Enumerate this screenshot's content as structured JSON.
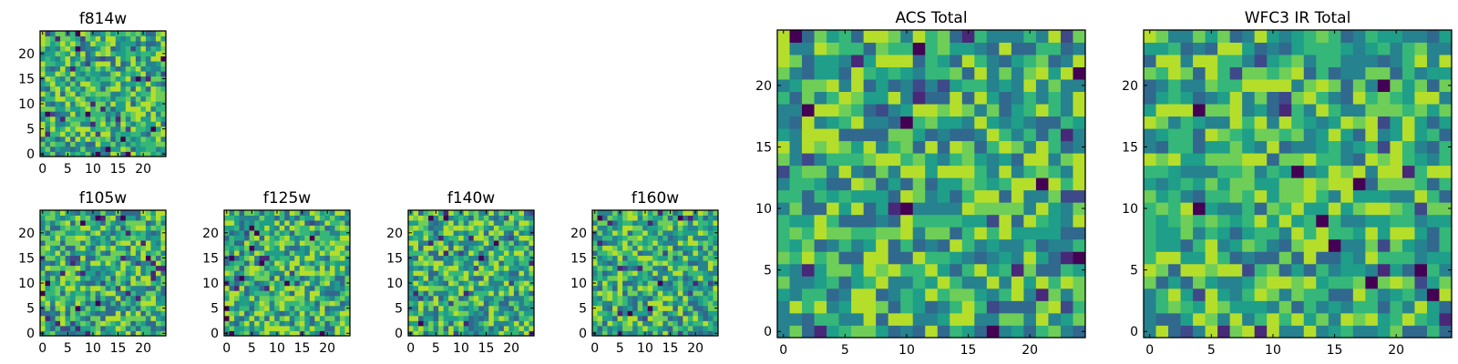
{
  "colors": {
    "background": "#ffffff",
    "axis": "#000000",
    "colormap": "viridis"
  },
  "chart_data": [
    {
      "type": "heatmap",
      "title": "f814w",
      "xlim": [
        0,
        24
      ],
      "ylim": [
        0,
        24
      ],
      "xticks": [
        "0",
        "5",
        "10",
        "15",
        "20"
      ],
      "yticks": [
        "0",
        "5",
        "10",
        "15",
        "20"
      ],
      "grid": false,
      "seed": 11
    },
    {
      "type": "heatmap",
      "title": "f105w",
      "xlim": [
        0,
        24
      ],
      "ylim": [
        0,
        24
      ],
      "xticks": [
        "0",
        "5",
        "10",
        "15",
        "20"
      ],
      "yticks": [
        "0",
        "5",
        "10",
        "15",
        "20"
      ],
      "grid": false,
      "seed": 23
    },
    {
      "type": "heatmap",
      "title": "f125w",
      "xlim": [
        0,
        24
      ],
      "ylim": [
        0,
        24
      ],
      "xticks": [
        "0",
        "5",
        "10",
        "15",
        "20"
      ],
      "yticks": [
        "0",
        "5",
        "10",
        "15",
        "20"
      ],
      "grid": false,
      "seed": 37
    },
    {
      "type": "heatmap",
      "title": "f140w",
      "xlim": [
        0,
        24
      ],
      "ylim": [
        0,
        24
      ],
      "xticks": [
        "0",
        "5",
        "10",
        "15",
        "20"
      ],
      "yticks": [
        "0",
        "5",
        "10",
        "15",
        "20"
      ],
      "grid": false,
      "seed": 41
    },
    {
      "type": "heatmap",
      "title": "f160w",
      "xlim": [
        0,
        24
      ],
      "ylim": [
        0,
        24
      ],
      "xticks": [
        "0",
        "5",
        "10",
        "15",
        "20"
      ],
      "yticks": [
        "0",
        "5",
        "10",
        "15",
        "20"
      ],
      "grid": false,
      "seed": 53
    },
    {
      "type": "heatmap",
      "title": "ACS Total",
      "xlim": [
        0,
        24
      ],
      "ylim": [
        0,
        24
      ],
      "xticks": [
        "0",
        "5",
        "10",
        "15",
        "20"
      ],
      "yticks": [
        "0",
        "5",
        "10",
        "15",
        "20"
      ],
      "grid": false,
      "seed": 67
    },
    {
      "type": "heatmap",
      "title": "WFC3 IR Total",
      "xlim": [
        0,
        24
      ],
      "ylim": [
        0,
        24
      ],
      "xticks": [
        "0",
        "5",
        "10",
        "15",
        "20"
      ],
      "yticks": [
        "0",
        "5",
        "10",
        "15",
        "20"
      ],
      "grid": false,
      "seed": 79
    }
  ]
}
